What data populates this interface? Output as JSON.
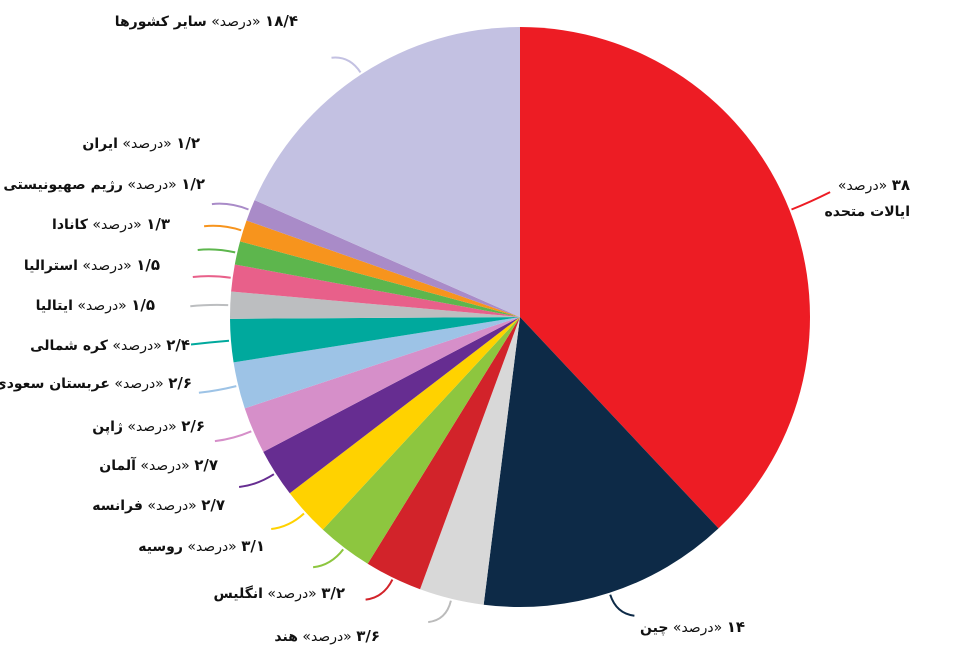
{
  "chart_data": {
    "type": "pie",
    "unit_text": "«درصد»",
    "slices": [
      {
        "label": "ایالات متحده",
        "value": 38,
        "display": "۳۸",
        "color": "#ED1C24"
      },
      {
        "label": "چین",
        "value": 14,
        "display": "۱۴",
        "color": "#0D2A47"
      },
      {
        "label": "هند",
        "value": 3.6,
        "display": "۳/۶",
        "color": "#D8D8D8"
      },
      {
        "label": "انگلیس",
        "value": 3.2,
        "display": "۳/۲",
        "color": "#D2232A"
      },
      {
        "label": "روسیه",
        "value": 3.1,
        "display": "۳/۱",
        "color": "#8DC63F"
      },
      {
        "label": "فرانسه",
        "value": 2.7,
        "display": "۲/۷",
        "color": "#FFD200"
      },
      {
        "label": "آلمان",
        "value": 2.7,
        "display": "۲/۷",
        "color": "#662D91"
      },
      {
        "label": "ژاپن",
        "value": 2.6,
        "display": "۲/۶",
        "color": "#D68FC9"
      },
      {
        "label": "عربستان سعودی",
        "value": 2.6,
        "display": "۲/۶",
        "color": "#9DC3E6"
      },
      {
        "label": "کره شمالی",
        "value": 2.4,
        "display": "۲/۴",
        "color": "#00A99D"
      },
      {
        "label": "ایتالیا",
        "value": 1.5,
        "display": "۱/۵",
        "color": "#BCBEC0"
      },
      {
        "label": "استرالیا",
        "value": 1.5,
        "display": "۱/۵",
        "color": "#E8608A"
      },
      {
        "label": "کانادا",
        "value": 1.3,
        "display": "۱/۳",
        "color": "#5DB64D"
      },
      {
        "label": "رژیم صهیونیستی",
        "value": 1.2,
        "display": "۱/۲",
        "color": "#F7941D"
      },
      {
        "label": "ایران",
        "value": 1.2,
        "display": "۱/۲",
        "color": "#A98BC8"
      },
      {
        "label": "سایر کشورها",
        "value": 18.4,
        "display": "۱۸/۴",
        "color": "#C3C1E2"
      }
    ]
  }
}
